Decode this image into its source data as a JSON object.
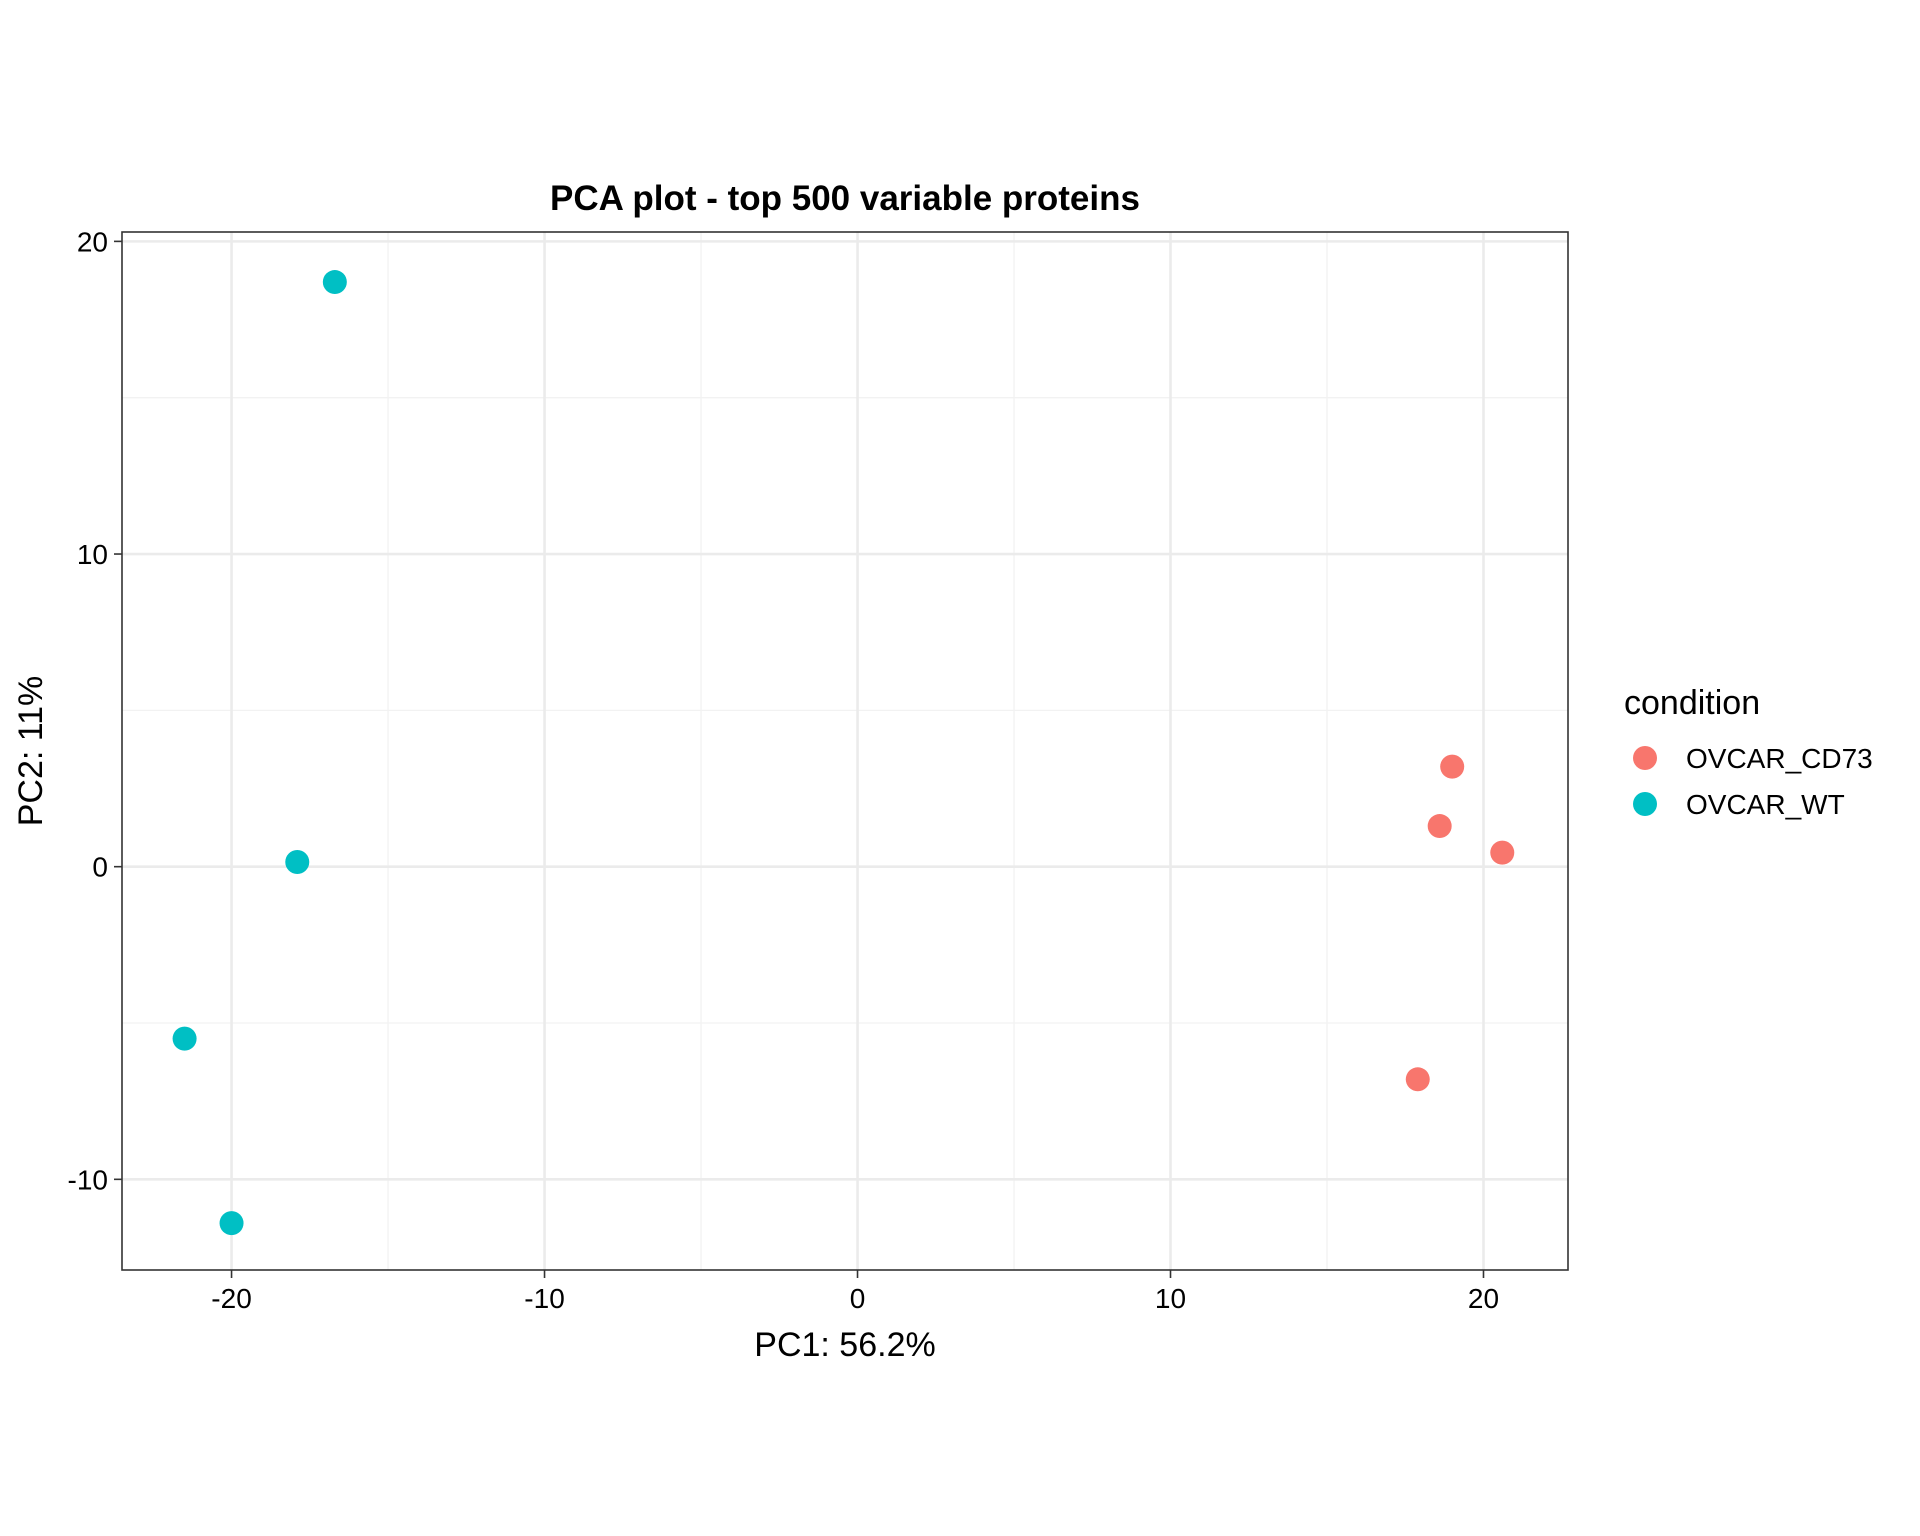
{
  "chart_data": {
    "type": "scatter",
    "title": "PCA plot - top 500 variable proteins",
    "xlabel": "PC1: 56.2%",
    "ylabel": "PC2: 11%",
    "xlim": [
      -23.5,
      22.7
    ],
    "ylim": [
      -12.9,
      20.3
    ],
    "xticks": [
      -20,
      -10,
      0,
      10,
      20
    ],
    "yticks": [
      -10,
      0,
      10,
      20
    ],
    "grid": true,
    "legend": {
      "title": "condition",
      "placement": "right"
    },
    "series": [
      {
        "name": "OVCAR_CD73",
        "color": "#F8766D",
        "points": [
          {
            "x": 19.0,
            "y": 3.2
          },
          {
            "x": 18.6,
            "y": 1.3
          },
          {
            "x": 20.6,
            "y": 0.45
          },
          {
            "x": 17.9,
            "y": -6.8
          }
        ]
      },
      {
        "name": "OVCAR_WT",
        "color": "#00BFC4",
        "points": [
          {
            "x": -16.7,
            "y": 18.7
          },
          {
            "x": -17.9,
            "y": 0.15
          },
          {
            "x": -21.5,
            "y": -5.5
          },
          {
            "x": -20.0,
            "y": -11.4
          }
        ]
      }
    ]
  }
}
